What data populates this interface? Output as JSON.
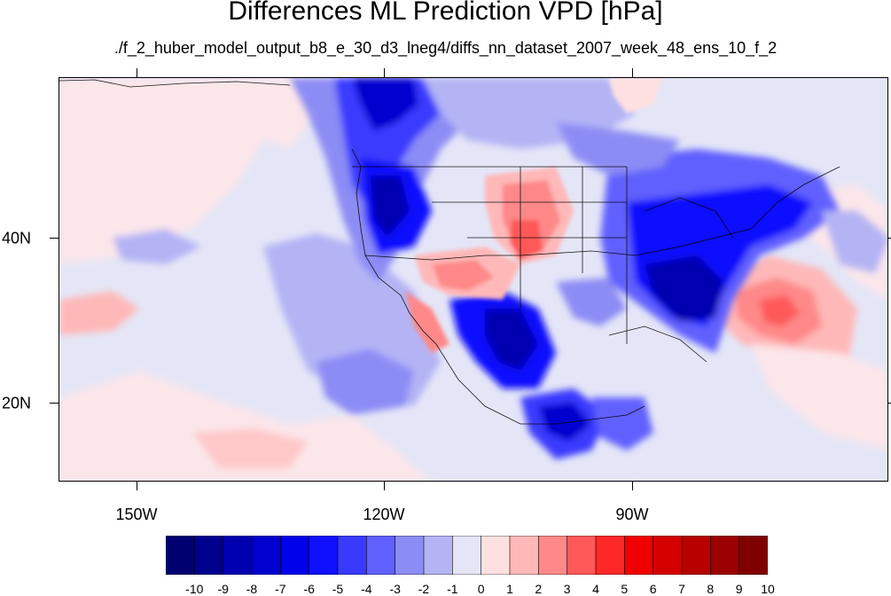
{
  "title": "Differences ML Prediction VPD [hPa]",
  "subtitle": "./f_2_huber_model_output_b8_e_30_d3_lneg4/diffs_nn_dataset_2007_week_48_ens_10_f_2",
  "axes": {
    "lon_labels": [
      "150W",
      "120W",
      "90W"
    ],
    "lat_labels": [
      "40N",
      "20N"
    ]
  },
  "colorbar": {
    "labels": [
      "-10",
      "-9",
      "-8",
      "-7",
      "-6",
      "-5",
      "-4",
      "-3",
      "-2",
      "-1",
      "0",
      "1",
      "2",
      "3",
      "4",
      "5",
      "6",
      "7",
      "8",
      "9",
      "10"
    ],
    "colors": [
      "#000070",
      "#00008f",
      "#0000b0",
      "#0000cf",
      "#0000ea",
      "#1010ff",
      "#3a3aff",
      "#6060ff",
      "#8c8cf5",
      "#b4b4f5",
      "#e4e6f7",
      "#ffe0e0",
      "#ffb8b8",
      "#ff8888",
      "#ff5858",
      "#ff2828",
      "#f00000",
      "#d40000",
      "#b80000",
      "#9c0000",
      "#800000"
    ]
  }
}
